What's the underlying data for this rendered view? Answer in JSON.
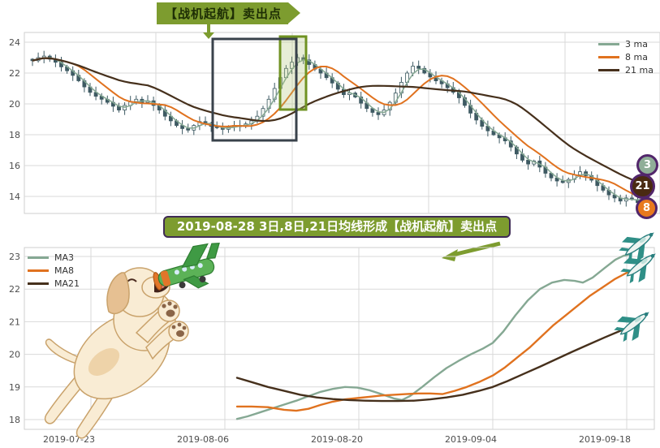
{
  "top_banner": {
    "text": "【战机起航】卖出点"
  },
  "mid_banner": {
    "text": "2019-08-28 3日,8日,21日均线形成【战机起航】卖出点"
  },
  "colors": {
    "ma3": "#85a893",
    "ma8": "#e0721f",
    "ma21": "#46301c",
    "candle": "#3e5a63",
    "candle_up_fill": "#f7f9f6",
    "banner_green": "#7d9c2f",
    "box_dark": "#39424b",
    "box_green": "#6f9222",
    "box_green_fill": "rgba(176,196,120,0.3)",
    "badge_border": "#52266b",
    "grid": "#d9d9d9",
    "axis_text": "#4d4d4d",
    "jet_teal": "#2f8f87"
  },
  "top_chart": {
    "legend": [
      {
        "label": "3 ma",
        "color": "#85a893"
      },
      {
        "label": "8 ma",
        "color": "#e0721f"
      },
      {
        "label": "21 ma",
        "color": "#46301c"
      }
    ],
    "y_ticks": [
      24,
      22,
      20,
      18,
      16,
      14
    ],
    "badges": [
      {
        "label": "3",
        "bg": "#8fae98"
      },
      {
        "label": "21",
        "bg": "#4a2a12"
      },
      {
        "label": "8",
        "bg": "#e8791e"
      }
    ]
  },
  "bottom_chart": {
    "legend": [
      {
        "label": "MA3",
        "color": "#85a893"
      },
      {
        "label": "MA8",
        "color": "#e0721f"
      },
      {
        "label": "MA21",
        "color": "#46301c"
      }
    ],
    "y_ticks": [
      23,
      22,
      21,
      20,
      19,
      18
    ],
    "x_ticks": [
      "2019-07-23",
      "2019-08-06",
      "2019-08-20",
      "2019-09-04",
      "2019-09-18"
    ]
  },
  "chart_data": [
    {
      "type": "candlestick",
      "title": "daily candles with 3/8/21 moving averages",
      "legend": [
        "3 ma",
        "8 ma",
        "21 ma"
      ],
      "ylim": [
        12.8,
        24.6
      ],
      "y_ticks": [
        24,
        22,
        20,
        18,
        16,
        14
      ],
      "ma_windows": [
        3,
        8,
        21
      ],
      "closes": [
        22.8,
        23.0,
        23.1,
        22.9,
        22.7,
        22.4,
        22.15,
        21.85,
        21.5,
        21.1,
        20.75,
        20.5,
        20.3,
        20.1,
        19.85,
        19.6,
        19.9,
        20.15,
        20.3,
        20.1,
        20.2,
        19.9,
        19.6,
        19.2,
        18.9,
        18.6,
        18.4,
        18.3,
        18.6,
        18.85,
        18.75,
        18.55,
        18.45,
        18.35,
        18.5,
        18.6,
        18.55,
        18.7,
        18.9,
        19.2,
        19.7,
        20.3,
        21.0,
        21.7,
        22.3,
        22.7,
        23.0,
        22.85,
        22.55,
        22.25,
        22.0,
        21.7,
        21.35,
        20.95,
        20.6,
        20.7,
        20.45,
        20.05,
        19.7,
        19.45,
        19.3,
        19.6,
        20.1,
        20.7,
        21.4,
        22.0,
        22.45,
        22.3,
        22.0,
        21.75,
        21.5,
        21.3,
        21.05,
        20.75,
        20.4,
        19.9,
        19.4,
        18.95,
        18.55,
        18.25,
        18.0,
        17.8,
        17.6,
        17.2,
        16.75,
        16.35,
        16.1,
        16.3,
        15.9,
        15.5,
        15.2,
        15.0,
        14.9,
        15.1,
        15.4,
        15.6,
        15.35,
        15.05,
        14.7,
        14.4,
        14.1,
        13.9,
        13.7,
        13.9,
        13.8,
        13.6,
        14.1,
        14.35
      ]
    },
    {
      "type": "line",
      "title": "moving averages forming the takeoff sell signal",
      "x_ticks": [
        "2019-07-23",
        "2019-08-06",
        "2019-08-20",
        "2019-09-04",
        "2019-09-18"
      ],
      "y_ticks": [
        23,
        22,
        21,
        20,
        19,
        18
      ],
      "ylim": [
        17.8,
        23.3
      ],
      "series": [
        {
          "name": "MA3",
          "color": "#85a893",
          "points": [
            [
              292,
              18.02
            ],
            [
              305,
              18.1
            ],
            [
              320,
              18.22
            ],
            [
              335,
              18.34
            ],
            [
              350,
              18.46
            ],
            [
              365,
              18.58
            ],
            [
              380,
              18.72
            ],
            [
              395,
              18.85
            ],
            [
              410,
              18.94
            ],
            [
              425,
              19.0
            ],
            [
              440,
              18.98
            ],
            [
              455,
              18.9
            ],
            [
              470,
              18.78
            ],
            [
              485,
              18.65
            ],
            [
              495,
              18.6
            ],
            [
              505,
              18.72
            ],
            [
              520,
              19.0
            ],
            [
              535,
              19.3
            ],
            [
              550,
              19.58
            ],
            [
              565,
              19.8
            ],
            [
              580,
              20.0
            ],
            [
              595,
              20.18
            ],
            [
              607,
              20.35
            ],
            [
              620,
              20.7
            ],
            [
              635,
              21.2
            ],
            [
              650,
              21.65
            ],
            [
              665,
              22.0
            ],
            [
              680,
              22.2
            ],
            [
              695,
              22.28
            ],
            [
              708,
              22.25
            ],
            [
              718,
              22.2
            ],
            [
              730,
              22.35
            ],
            [
              745,
              22.65
            ],
            [
              758,
              22.9
            ],
            [
              768,
              23.02
            ],
            [
              775,
              23.06
            ]
          ]
        },
        {
          "name": "MA8",
          "color": "#e0721f",
          "points": [
            [
              292,
              18.4
            ],
            [
              310,
              18.4
            ],
            [
              330,
              18.38
            ],
            [
              350,
              18.3
            ],
            [
              365,
              18.27
            ],
            [
              380,
              18.33
            ],
            [
              395,
              18.45
            ],
            [
              410,
              18.55
            ],
            [
              425,
              18.62
            ],
            [
              440,
              18.66
            ],
            [
              455,
              18.7
            ],
            [
              470,
              18.74
            ],
            [
              485,
              18.76
            ],
            [
              500,
              18.78
            ],
            [
              515,
              18.8
            ],
            [
              530,
              18.8
            ],
            [
              545,
              18.78
            ],
            [
              560,
              18.88
            ],
            [
              575,
              19.0
            ],
            [
              590,
              19.15
            ],
            [
              607,
              19.35
            ],
            [
              622,
              19.6
            ],
            [
              637,
              19.9
            ],
            [
              652,
              20.2
            ],
            [
              667,
              20.55
            ],
            [
              682,
              20.9
            ],
            [
              697,
              21.2
            ],
            [
              712,
              21.5
            ],
            [
              727,
              21.8
            ],
            [
              742,
              22.05
            ],
            [
              757,
              22.3
            ],
            [
              772,
              22.5
            ],
            [
              785,
              22.65
            ]
          ]
        },
        {
          "name": "MA21",
          "color": "#46301c",
          "points": [
            [
              292,
              19.28
            ],
            [
              310,
              19.15
            ],
            [
              330,
              19.0
            ],
            [
              350,
              18.88
            ],
            [
              370,
              18.76
            ],
            [
              390,
              18.68
            ],
            [
              410,
              18.63
            ],
            [
              430,
              18.6
            ],
            [
              450,
              18.58
            ],
            [
              470,
              18.57
            ],
            [
              490,
              18.57
            ],
            [
              510,
              18.58
            ],
            [
              530,
              18.62
            ],
            [
              550,
              18.68
            ],
            [
              570,
              18.76
            ],
            [
              590,
              18.88
            ],
            [
              607,
              19.0
            ],
            [
              625,
              19.18
            ],
            [
              645,
              19.4
            ],
            [
              665,
              19.62
            ],
            [
              685,
              19.85
            ],
            [
              705,
              20.08
            ],
            [
              725,
              20.3
            ],
            [
              745,
              20.52
            ],
            [
              762,
              20.7
            ],
            [
              776,
              20.85
            ]
          ]
        }
      ]
    }
  ]
}
